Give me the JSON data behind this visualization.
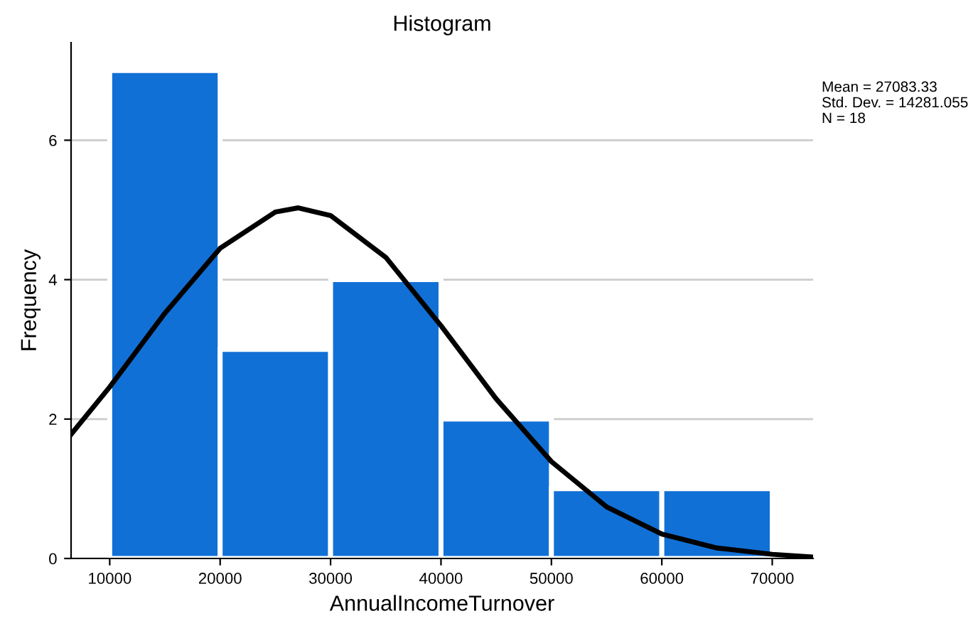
{
  "chart_data": {
    "type": "histogram",
    "title": "Histogram",
    "xlabel": "AnnualIncomeTurnover",
    "ylabel": "Frequency",
    "bins": [
      10000,
      20000,
      30000,
      40000,
      50000,
      60000,
      70000
    ],
    "values": [
      7,
      3,
      4,
      2,
      1,
      1
    ],
    "color": "#1170d6",
    "series": [
      {
        "type": "line",
        "color": "#000000",
        "x": [
          6500,
          10000,
          15000,
          20000,
          25000,
          27083,
          30000,
          35000,
          40000,
          45000,
          50000,
          55000,
          60000,
          65000,
          70000,
          73700
        ],
        "values": [
          1.78,
          2.46,
          3.52,
          4.45,
          4.97,
          5.03,
          4.92,
          4.32,
          3.34,
          2.29,
          1.39,
          0.74,
          0.35,
          0.15,
          0.06,
          0.02
        ]
      }
    ],
    "xlim": [
      6500,
      73700
    ],
    "xticks": [
      10000,
      20000,
      30000,
      40000,
      50000,
      60000,
      70000
    ],
    "ylim": [
      0,
      7.4
    ],
    "yticks": [
      0,
      2,
      4,
      6
    ],
    "grid": "y",
    "line_style": "solid",
    "annotations": [
      "Mean = 27083.33",
      "Std. Dev. = 14281.055",
      "N = 18"
    ]
  }
}
